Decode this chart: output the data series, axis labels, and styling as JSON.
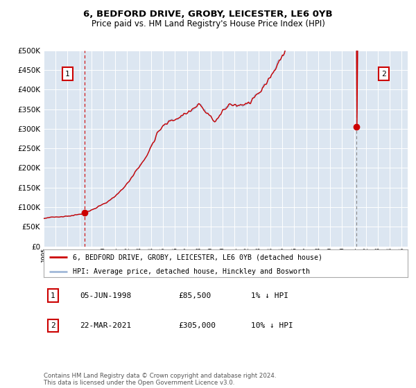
{
  "title1": "6, BEDFORD DRIVE, GROBY, LEICESTER, LE6 0YB",
  "title2": "Price paid vs. HM Land Registry's House Price Index (HPI)",
  "bg_color": "#dce6f1",
  "hpi_color": "#a0b8d8",
  "price_color": "#cc0000",
  "vline1_color": "#cc0000",
  "vline2_color": "#888888",
  "point1_date_num": 1998.43,
  "point1_price": 85500,
  "point2_date_num": 2021.22,
  "point2_price": 305000,
  "ylim": [
    0,
    500000
  ],
  "yticks": [
    0,
    50000,
    100000,
    150000,
    200000,
    250000,
    300000,
    350000,
    400000,
    450000,
    500000
  ],
  "xlim_start": 1995.0,
  "xlim_end": 2025.5,
  "footer": "Contains HM Land Registry data © Crown copyright and database right 2024.\nThis data is licensed under the Open Government Licence v3.0.",
  "legend_line1": "6, BEDFORD DRIVE, GROBY, LEICESTER, LE6 0YB (detached house)",
  "legend_line2": "HPI: Average price, detached house, Hinckley and Bosworth",
  "ann1_label": "1",
  "ann1_date": "05-JUN-1998",
  "ann1_price": "£85,500",
  "ann1_hpi": "1% ↓ HPI",
  "ann2_label": "2",
  "ann2_date": "22-MAR-2021",
  "ann2_price": "£305,000",
  "ann2_hpi": "10% ↓ HPI"
}
